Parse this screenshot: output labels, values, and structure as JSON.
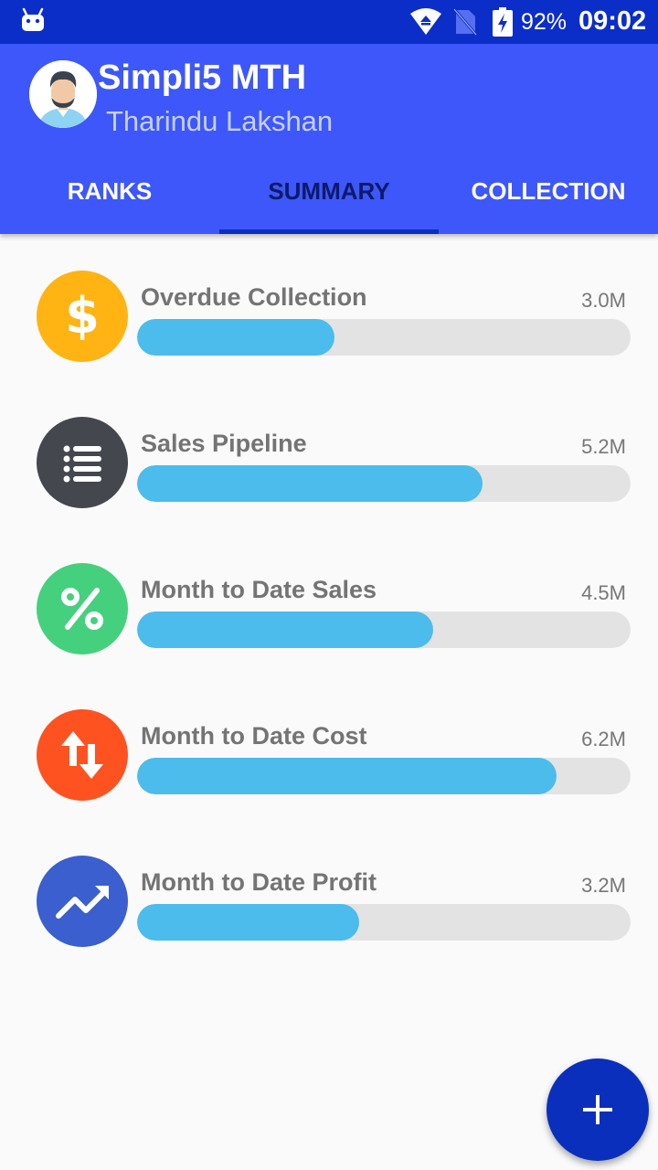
{
  "status_bar": {
    "battery_percent": "92%",
    "time": "09:02",
    "icons": [
      "android-debug-icon",
      "wifi-icon",
      "no-sim-icon",
      "battery-charging-icon"
    ]
  },
  "header": {
    "title": "Simpli5 MTH",
    "subtitle": "Tharindu Lakshan",
    "avatar_icon": "user-avatar"
  },
  "tabs": [
    {
      "label": "RANKS",
      "active": false
    },
    {
      "label": "SUMMARY",
      "active": true
    },
    {
      "label": "COLLECTION",
      "active": false
    }
  ],
  "colors": {
    "status_bar": "#0b2ec9",
    "app_bar": "#3d57fb",
    "progress_fill": "#4bbcec",
    "progress_track": "#e3e3e3",
    "fab": "#0a2fbd"
  },
  "summary": [
    {
      "label": "Overdue Collection",
      "value": "3.0M",
      "progress": 0.4,
      "icon": "dollar-icon",
      "color": "#ffb414"
    },
    {
      "label": "Sales Pipeline",
      "value": "5.2M",
      "progress": 0.7,
      "icon": "list-icon",
      "color": "#45474f"
    },
    {
      "label": "Month to Date Sales",
      "value": "4.5M",
      "progress": 0.6,
      "icon": "percent-icon",
      "color": "#45d07e"
    },
    {
      "label": "Month to Date Cost",
      "value": "6.2M",
      "progress": 0.85,
      "icon": "sort-arrows-icon",
      "color": "#ff5221"
    },
    {
      "label": "Month to Date Profit",
      "value": "3.2M",
      "progress": 0.45,
      "icon": "trending-up-icon",
      "color": "#3b5fce"
    }
  ],
  "fab": {
    "icon": "plus-icon"
  }
}
